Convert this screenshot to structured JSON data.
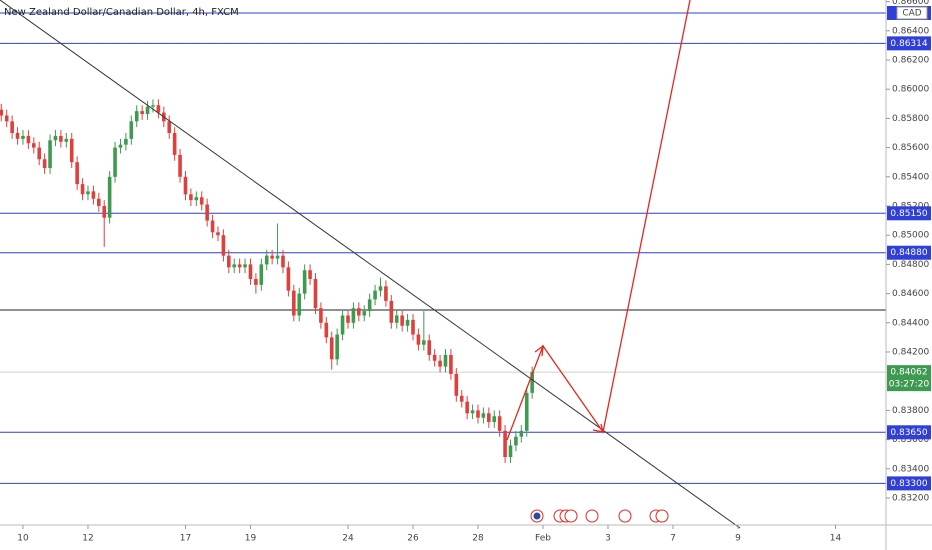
{
  "chart_data": {
    "type": "candlestick",
    "title": "New Zealand Dollar/Canadian Dollar, 4h, FXCM",
    "currency": "CAD",
    "countdown": "03:27:20",
    "up_color": "#3e9a50",
    "down_color": "#e0403c",
    "xlim": [
      -0.24,
      163.32
    ],
    "ylim": [
      0.83015,
      0.86611
    ],
    "xticks": [
      {
        "value": 4,
        "label": "10"
      },
      {
        "value": 16,
        "label": "12"
      },
      {
        "value": 34,
        "label": "17"
      },
      {
        "value": 46,
        "label": "19"
      },
      {
        "value": 64,
        "label": "24"
      },
      {
        "value": 76,
        "label": "26"
      },
      {
        "value": 88,
        "label": "28"
      },
      {
        "value": 100,
        "label": "Feb"
      },
      {
        "value": 112,
        "label": "3"
      },
      {
        "value": 124,
        "label": "7"
      },
      {
        "value": 136,
        "label": "9"
      },
      {
        "value": 154,
        "label": "14"
      }
    ],
    "yticks": [
      {
        "value": 0.866,
        "label": "0.86600"
      },
      {
        "value": 0.864,
        "label": "0.86400"
      },
      {
        "value": 0.862,
        "label": "0.86200"
      },
      {
        "value": 0.86,
        "label": "0.86000"
      },
      {
        "value": 0.858,
        "label": "0.85800"
      },
      {
        "value": 0.856,
        "label": "0.85600"
      },
      {
        "value": 0.854,
        "label": "0.85400"
      },
      {
        "value": 0.852,
        "label": "0.85200"
      },
      {
        "value": 0.85,
        "label": "0.85000"
      },
      {
        "value": 0.848,
        "label": "0.84800"
      },
      {
        "value": 0.846,
        "label": "0.84600"
      },
      {
        "value": 0.844,
        "label": "0.84400"
      },
      {
        "value": 0.842,
        "label": "0.84200"
      },
      {
        "value": 0.838,
        "label": "0.83800"
      },
      {
        "value": 0.836,
        "label": "0.83600"
      },
      {
        "value": 0.834,
        "label": "0.83400"
      },
      {
        "value": 0.832,
        "label": "0.83200"
      }
    ],
    "levels": [
      {
        "value": 0.86522,
        "color": "#2f3fd8"
      },
      {
        "value": 0.86314,
        "label": "0.86314",
        "color": "#2f3fd8"
      },
      {
        "value": 0.8515,
        "label": "0.85150",
        "color": "#2f3fd8"
      },
      {
        "value": 0.8488,
        "label": "0.84880",
        "color": "#2f3fd8"
      },
      {
        "value": 0.84488,
        "color": "#222222"
      },
      {
        "value": 0.8365,
        "label": "0.83650",
        "color": "#2f3fd8"
      },
      {
        "value": 0.833,
        "label": "0.83300",
        "color": "#2f3fd8"
      }
    ],
    "x": [
      0,
      1,
      2,
      3,
      4,
      5,
      6,
      7,
      8,
      9,
      10,
      11,
      12,
      13,
      14,
      15,
      16,
      17,
      18,
      19,
      20,
      21,
      22,
      23,
      24,
      25,
      26,
      27,
      28,
      29,
      30,
      31,
      32,
      33,
      34,
      35,
      36,
      37,
      38,
      39,
      40,
      41,
      42,
      43,
      44,
      45,
      46,
      47,
      48,
      49,
      50,
      51,
      52,
      53,
      54,
      55,
      56,
      57,
      58,
      59,
      60,
      61,
      62,
      63,
      64,
      65,
      66,
      67,
      68,
      69,
      70,
      71,
      72,
      73,
      74,
      75,
      76,
      77,
      78,
      79,
      80,
      81,
      82,
      83,
      84,
      85,
      86,
      87,
      88,
      89,
      90,
      91,
      92,
      93,
      94,
      95,
      96,
      97,
      98
    ],
    "open": [
      0.8586,
      0.8582,
      0.8578,
      0.857,
      0.8566,
      0.8568,
      0.8563,
      0.856,
      0.8552,
      0.8546,
      0.8565,
      0.8568,
      0.8564,
      0.8566,
      0.855,
      0.8535,
      0.8528,
      0.853,
      0.8525,
      0.852,
      0.8512,
      0.854,
      0.856,
      0.8562,
      0.8566,
      0.8578,
      0.8585,
      0.8583,
      0.8588,
      0.8589,
      0.8584,
      0.8578,
      0.857,
      0.8555,
      0.854,
      0.8528,
      0.8524,
      0.8526,
      0.8521,
      0.851,
      0.8502,
      0.85,
      0.8486,
      0.8478,
      0.848,
      0.8478,
      0.848,
      0.847,
      0.8466,
      0.848,
      0.8486,
      0.8484,
      0.8486,
      0.8478,
      0.8462,
      0.8445,
      0.846,
      0.8476,
      0.847,
      0.845,
      0.844,
      0.843,
      0.8415,
      0.8432,
      0.8445,
      0.844,
      0.845,
      0.8445,
      0.8448,
      0.8456,
      0.8462,
      0.8465,
      0.8455,
      0.844,
      0.8445,
      0.8438,
      0.8442,
      0.8432,
      0.8425,
      0.8428,
      0.8418,
      0.8414,
      0.841,
      0.8418,
      0.8405,
      0.839,
      0.8386,
      0.8378,
      0.838,
      0.8375,
      0.8378,
      0.8372,
      0.8376,
      0.8366,
      0.8348,
      0.8356,
      0.8362,
      0.8366,
      0.8392
    ],
    "high": [
      0.859,
      0.8586,
      0.8582,
      0.8574,
      0.8572,
      0.8572,
      0.8567,
      0.8564,
      0.8556,
      0.8569,
      0.8572,
      0.8572,
      0.857,
      0.857,
      0.8554,
      0.8539,
      0.8534,
      0.8534,
      0.8529,
      0.8524,
      0.8544,
      0.8564,
      0.8566,
      0.857,
      0.8582,
      0.8589,
      0.8589,
      0.8592,
      0.8593,
      0.8593,
      0.8588,
      0.8582,
      0.8574,
      0.8559,
      0.8544,
      0.8532,
      0.853,
      0.853,
      0.8525,
      0.8514,
      0.8506,
      0.8504,
      0.849,
      0.8484,
      0.8484,
      0.8484,
      0.8484,
      0.8474,
      0.8484,
      0.849,
      0.849,
      0.8508,
      0.849,
      0.8482,
      0.8466,
      0.8464,
      0.848,
      0.848,
      0.8474,
      0.8454,
      0.8444,
      0.8434,
      0.8436,
      0.8449,
      0.8449,
      0.8454,
      0.8454,
      0.8452,
      0.846,
      0.8466,
      0.8471,
      0.8469,
      0.8459,
      0.8449,
      0.8449,
      0.8446,
      0.8446,
      0.8436,
      0.8448,
      0.8432,
      0.8422,
      0.8418,
      0.8422,
      0.8422,
      0.8409,
      0.8394,
      0.839,
      0.8384,
      0.8384,
      0.8382,
      0.8382,
      0.838,
      0.838,
      0.837,
      0.836,
      0.8366,
      0.837,
      0.8396,
      0.841
    ],
    "low": [
      0.8578,
      0.8574,
      0.8566,
      0.8562,
      0.8562,
      0.8559,
      0.8556,
      0.8548,
      0.8542,
      0.8542,
      0.8561,
      0.856,
      0.856,
      0.8546,
      0.8531,
      0.8524,
      0.8524,
      0.8521,
      0.8516,
      0.8492,
      0.8508,
      0.8536,
      0.8556,
      0.8558,
      0.8562,
      0.8574,
      0.8579,
      0.8579,
      0.8584,
      0.858,
      0.8574,
      0.8566,
      0.8551,
      0.8536,
      0.8524,
      0.852,
      0.852,
      0.8517,
      0.8506,
      0.8498,
      0.8496,
      0.8482,
      0.8474,
      0.8474,
      0.8474,
      0.8474,
      0.8466,
      0.846,
      0.8462,
      0.8476,
      0.848,
      0.848,
      0.8474,
      0.8458,
      0.8441,
      0.8441,
      0.8456,
      0.8466,
      0.8446,
      0.8436,
      0.8426,
      0.8408,
      0.8411,
      0.8428,
      0.8436,
      0.8436,
      0.8441,
      0.8441,
      0.8444,
      0.8452,
      0.8458,
      0.8451,
      0.8436,
      0.8436,
      0.8434,
      0.8434,
      0.8428,
      0.8421,
      0.8421,
      0.8414,
      0.841,
      0.8406,
      0.8406,
      0.8401,
      0.8386,
      0.8382,
      0.8374,
      0.8374,
      0.8371,
      0.8371,
      0.8368,
      0.8368,
      0.8362,
      0.8344,
      0.8344,
      0.8352,
      0.8358,
      0.8362,
      0.8388
    ],
    "close": [
      0.8582,
      0.8578,
      0.857,
      0.8566,
      0.8568,
      0.8563,
      0.856,
      0.8552,
      0.8546,
      0.8565,
      0.8568,
      0.8564,
      0.8566,
      0.855,
      0.8535,
      0.8528,
      0.853,
      0.8525,
      0.852,
      0.8512,
      0.854,
      0.856,
      0.8562,
      0.8566,
      0.8578,
      0.8585,
      0.8583,
      0.8588,
      0.8589,
      0.8584,
      0.8578,
      0.857,
      0.8555,
      0.854,
      0.8528,
      0.8524,
      0.8526,
      0.8521,
      0.851,
      0.8502,
      0.85,
      0.8486,
      0.8478,
      0.848,
      0.8478,
      0.848,
      0.847,
      0.8466,
      0.848,
      0.8486,
      0.8484,
      0.8486,
      0.8478,
      0.8462,
      0.8445,
      0.846,
      0.8476,
      0.847,
      0.845,
      0.844,
      0.843,
      0.8415,
      0.8432,
      0.8445,
      0.844,
      0.845,
      0.8445,
      0.8448,
      0.8456,
      0.8462,
      0.8465,
      0.8455,
      0.844,
      0.8445,
      0.8438,
      0.8442,
      0.8432,
      0.8425,
      0.8428,
      0.8418,
      0.8414,
      0.841,
      0.8418,
      0.8405,
      0.839,
      0.8386,
      0.8378,
      0.838,
      0.8375,
      0.8378,
      0.8372,
      0.8376,
      0.8366,
      0.8348,
      0.8356,
      0.8362,
      0.8366,
      0.8392,
      0.84062
    ]
  }
}
